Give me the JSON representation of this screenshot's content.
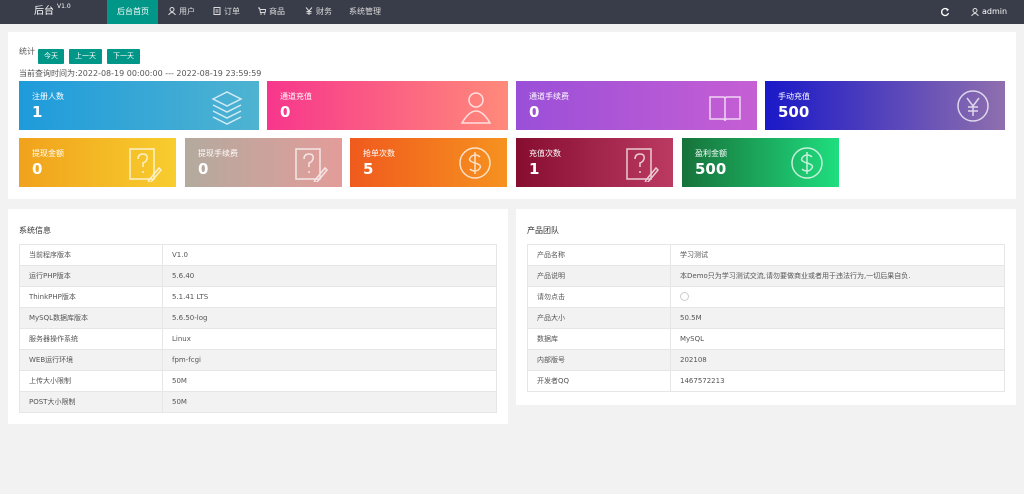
{
  "nav": {
    "brand": "后台",
    "version": "V1.0",
    "items": [
      "后台首页",
      "用户",
      "订单",
      "商品",
      "财务",
      "系统管理"
    ],
    "user": "admin"
  },
  "stats": {
    "label": "统计",
    "buttons": [
      "今天",
      "上一天",
      "下一天"
    ],
    "range": "当前查询时间为:2022-08-19 00:00:00 --- 2022-08-19 23:59:59",
    "cards": [
      {
        "label": "注册人数",
        "value": 1
      },
      {
        "label": "通道充值",
        "value": 0
      },
      {
        "label": "通道手续费",
        "value": 0
      },
      {
        "label": "手动充值",
        "value": 500
      },
      {
        "label": "提现金额",
        "value": 0
      },
      {
        "label": "提现手续费",
        "value": 0
      },
      {
        "label": "抢单次数",
        "value": 5
      },
      {
        "label": "充值次数",
        "value": 1
      },
      {
        "label": "盈利金额",
        "value": 500
      }
    ]
  },
  "system": {
    "title": "系统信息",
    "rows": [
      [
        "当前程序版本",
        "V1.0"
      ],
      [
        "运行PHP版本",
        "5.6.40"
      ],
      [
        "ThinkPHP版本",
        "5.1.41 LTS"
      ],
      [
        "MySQL数据库版本",
        "5.6.50-log"
      ],
      [
        "服务器操作系统",
        "Linux"
      ],
      [
        "WEB运行环境",
        "fpm-fcgi"
      ],
      [
        "上传大小限制",
        "50M"
      ],
      [
        "POST大小限制",
        "50M"
      ]
    ]
  },
  "product": {
    "title": "产品团队",
    "rows": [
      [
        "产品名称",
        "学习测试"
      ],
      [
        "产品说明",
        "本Demo只为学习测试交流,请勿要做商业或者用于违法行为,一切后果自负."
      ],
      [
        "请勿点击"
      ],
      [
        "产品大小",
        "50.5M"
      ],
      [
        "数据库",
        "MySQL"
      ],
      [
        "内部版号",
        "202108"
      ],
      [
        "开发者QQ",
        "1467572213"
      ]
    ]
  }
}
